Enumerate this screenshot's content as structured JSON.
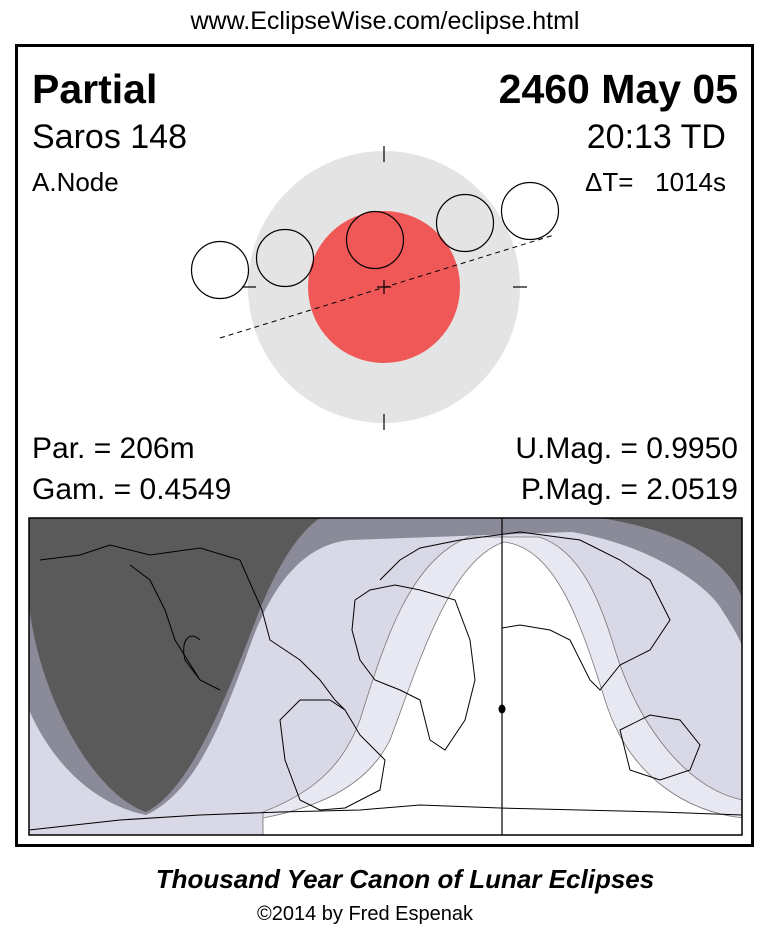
{
  "url": "www.EclipseWise.com/eclipse.html",
  "eclipse_type": "Partial",
  "date": "2460 May 05",
  "saros": "Saros 148",
  "time": "20:13 TD",
  "node": "A.Node",
  "delta_t": "ΔT=   1014s",
  "parameters": {
    "partial_duration": "Par. = 206m",
    "gamma": "Gam. = 0.4549",
    "umbral_magnitude": "U.Mag. = 0.9950",
    "penumbral_magnitude": "P.Mag. = 2.0519"
  },
  "footer": {
    "title": "Thousand Year Canon of Lunar Eclipses",
    "copyright": "©2014 by Fred Espenak"
  },
  "colors": {
    "umbra": "#f05858",
    "penumbra": "#e4e4e4",
    "night": "#5a5a5a",
    "penumbral_visibility": "#8a8a98",
    "partial_visibility": "#d8d8e6",
    "umbral_visibility": "#e8e8f2",
    "full_visibility": "#ffffff"
  }
}
